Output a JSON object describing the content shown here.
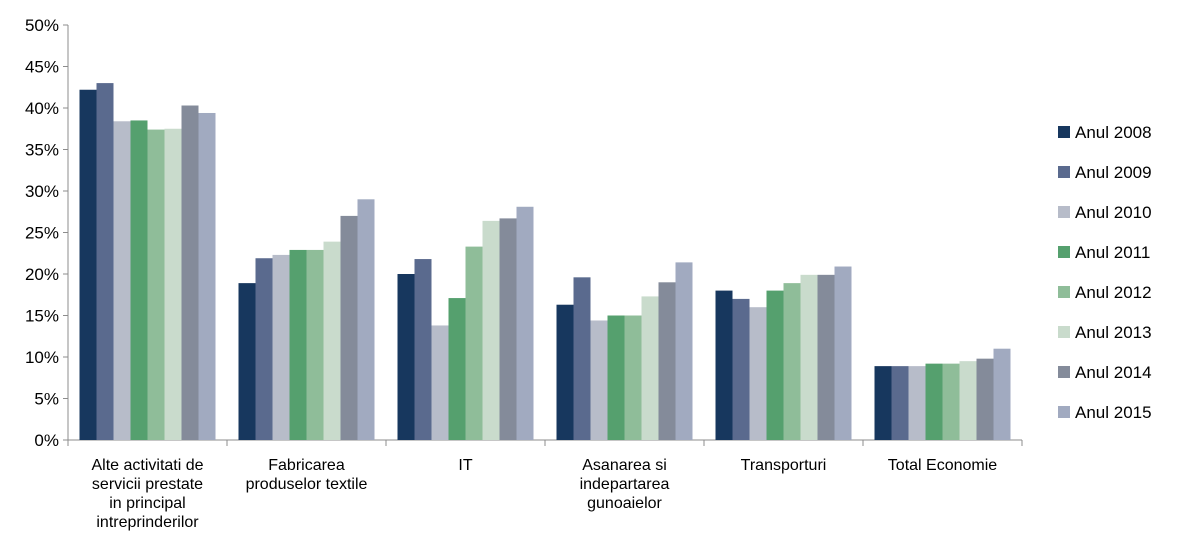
{
  "chart_data": {
    "type": "bar",
    "title": "",
    "xlabel": "",
    "ylabel": "",
    "ylim": [
      0,
      50
    ],
    "y_tick_step": 5,
    "y_tick_suffix": "%",
    "grid": false,
    "legend_position": "right",
    "categories": [
      [
        "Alte activitati de",
        "servicii prestate",
        "in principal",
        "intreprinderilor"
      ],
      [
        "Fabricarea",
        "produselor textile"
      ],
      [
        "IT"
      ],
      [
        "Asanarea si",
        "indepartarea",
        "gunoaielor"
      ],
      [
        "Transporturi"
      ],
      [
        "Total Economie"
      ]
    ],
    "series": [
      {
        "name": "Anul 2008",
        "color": "#17375e",
        "values": [
          42.2,
          18.9,
          20.0,
          16.3,
          18.0,
          8.9
        ]
      },
      {
        "name": "Anul 2009",
        "color": "#5a6a8e",
        "values": [
          43.0,
          21.9,
          21.8,
          19.6,
          17.0,
          8.9
        ]
      },
      {
        "name": "Anul 2010",
        "color": "#b7bcc9",
        "values": [
          38.4,
          22.3,
          13.8,
          14.4,
          16.0,
          8.9
        ]
      },
      {
        "name": "Anul 2011",
        "color": "#55a06e",
        "values": [
          38.5,
          22.9,
          17.1,
          15.0,
          18.0,
          9.2
        ]
      },
      {
        "name": "Anul 2012",
        "color": "#8fbd99",
        "values": [
          37.4,
          22.9,
          23.3,
          15.0,
          18.9,
          9.2
        ]
      },
      {
        "name": "Anul 2013",
        "color": "#c9dbcc",
        "values": [
          37.5,
          23.9,
          26.4,
          17.3,
          19.9,
          9.5
        ]
      },
      {
        "name": "Anul 2014",
        "color": "#848b9a",
        "values": [
          40.3,
          27.0,
          26.7,
          19.0,
          19.9,
          9.8
        ]
      },
      {
        "name": "Anul 2015",
        "color": "#a1aac0",
        "values": [
          39.4,
          29.0,
          28.1,
          21.4,
          20.9,
          11.0
        ]
      }
    ]
  }
}
